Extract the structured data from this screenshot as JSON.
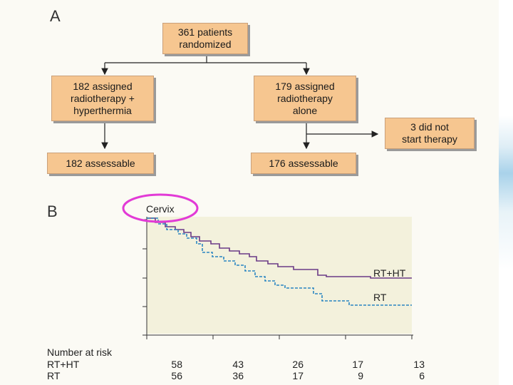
{
  "panel_a": {
    "letter": "A",
    "boxes": {
      "randomized": "361 patients\nrandomized",
      "rt_ht": "182 assigned\nradiotherapy +\nhyperthermia",
      "rt": "179 assigned\nradiotherapy\nalone",
      "not_started": "3 did not\nstart therapy",
      "rt_ht_assess": "182 assessable",
      "rt_assess": "176 assessable"
    }
  },
  "panel_b": {
    "letter": "B",
    "title": "Cervix",
    "highlight_color": "#e23ad6",
    "series_labels": {
      "rt_ht": "RT+HT",
      "rt": "RT"
    },
    "risk_table": {
      "header": "Number at risk",
      "rows": [
        {
          "label": "RT+HT",
          "values": [
            "58",
            "43",
            "26",
            "17",
            "13"
          ]
        },
        {
          "label": "RT",
          "values": [
            "56",
            "36",
            "17",
            "9",
            "6"
          ]
        }
      ]
    }
  },
  "colors": {
    "box_fill": "#f6c690",
    "rt_ht_line": "#6b3a86",
    "rt_line": "#2a86c2",
    "plot_bg": "#f3f1dc"
  }
}
